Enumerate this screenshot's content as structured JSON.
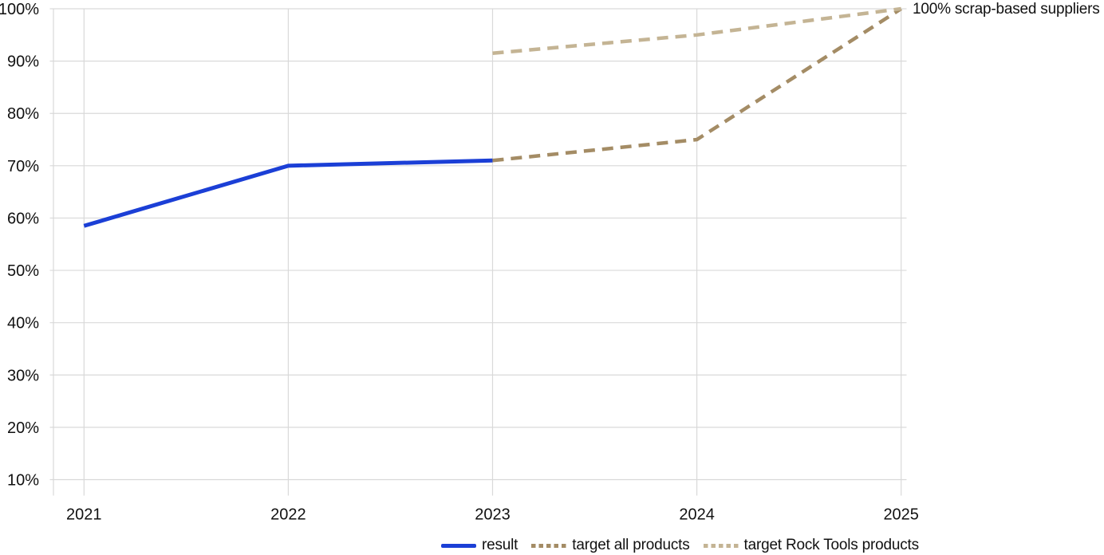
{
  "chart_data": {
    "type": "line",
    "title": "",
    "xlabel": "",
    "ylabel": "",
    "x_categories": [
      2021,
      2022,
      2023,
      2024,
      2025
    ],
    "xlim": [
      2020.85,
      2025
    ],
    "ylim": [
      6.8,
      100
    ],
    "grid": true,
    "y_ticks": [
      {
        "value": 10,
        "label": "10%"
      },
      {
        "value": 20,
        "label": "20%"
      },
      {
        "value": 30,
        "label": "30%"
      },
      {
        "value": 40,
        "label": "40%"
      },
      {
        "value": 50,
        "label": "50%"
      },
      {
        "value": 60,
        "label": "60%"
      },
      {
        "value": 70,
        "label": "70%"
      },
      {
        "value": 80,
        "label": "80%"
      },
      {
        "value": 90,
        "label": "90%"
      },
      {
        "value": 100,
        "label": "100%"
      }
    ],
    "series": [
      {
        "name": "result",
        "style": "solid",
        "color": "#1b3fd6",
        "points": [
          {
            "x": 2021,
            "y": 58.5
          },
          {
            "x": 2022,
            "y": 70
          },
          {
            "x": 2023,
            "y": 71
          }
        ]
      },
      {
        "name": "target all products",
        "style": "dashed",
        "color": "#a48c65",
        "points": [
          {
            "x": 2023,
            "y": 71
          },
          {
            "x": 2024,
            "y": 75
          },
          {
            "x": 2025,
            "y": 100
          }
        ]
      },
      {
        "name": "target Rock Tools products",
        "style": "dashed",
        "color": "#c4b494",
        "points": [
          {
            "x": 2023,
            "y": 91.5
          },
          {
            "x": 2024,
            "y": 95
          },
          {
            "x": 2025,
            "y": 100
          }
        ]
      }
    ],
    "annotation": {
      "text": "100% scrap-based suppliers",
      "x": 2025,
      "y": 100
    },
    "legend_position": "bottom"
  },
  "colors": {
    "gridline": "#d9d9d9",
    "text": "#111111"
  }
}
